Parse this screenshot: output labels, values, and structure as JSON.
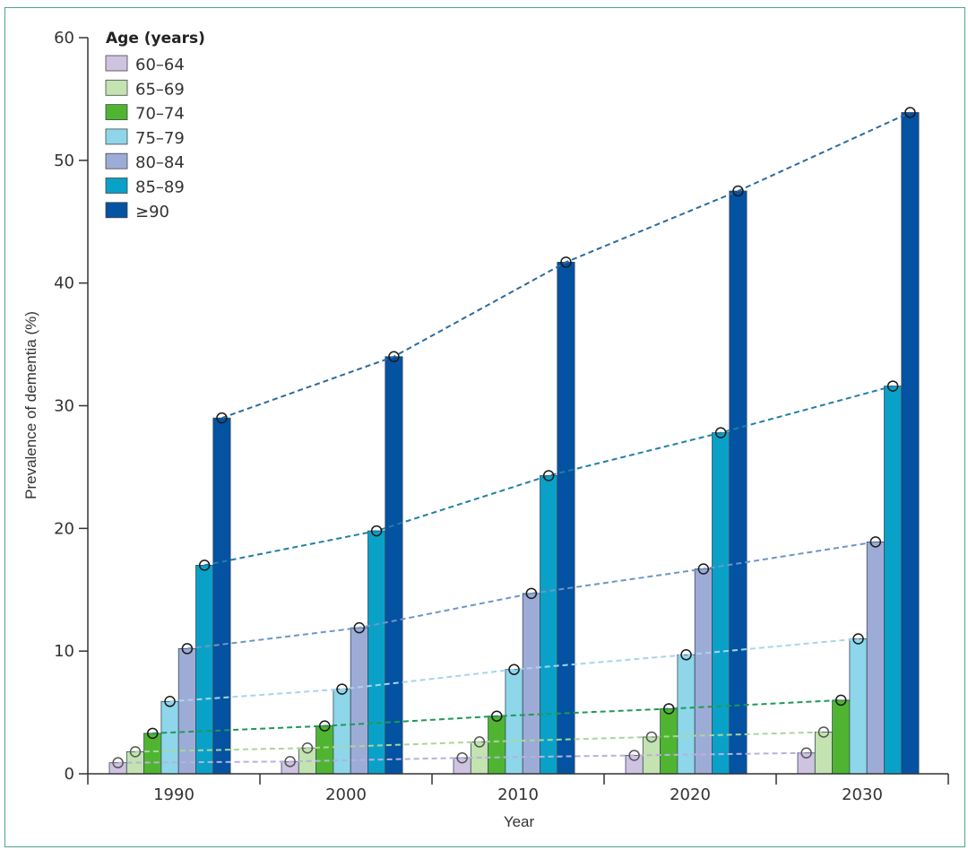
{
  "chart_data": {
    "type": "bar",
    "title": "",
    "xlabel": "Year",
    "ylabel": "Prevalence of dementia (%)",
    "ylim": [
      0,
      60
    ],
    "yticks": [
      0,
      10,
      20,
      30,
      40,
      50,
      60
    ],
    "categories": [
      "1990",
      "2000",
      "2010",
      "2020",
      "2030"
    ],
    "grid": false,
    "legend": {
      "title": "Age (years)",
      "placement": "top-left"
    },
    "trend_lines": "dashed lines connecting each age group's values across years, with circle markers at bar tops",
    "series": [
      {
        "name": "60–64",
        "color": "#cfc3e2",
        "line_color": "#b9b0dd",
        "values": [
          0.9,
          1.0,
          1.3,
          1.5,
          1.7
        ]
      },
      {
        "name": "65–69",
        "color": "#c3e3b1",
        "line_color": "#a9d79a",
        "values": [
          1.8,
          2.1,
          2.6,
          3.0,
          3.4
        ]
      },
      {
        "name": "70–74",
        "color": "#4fb531",
        "line_color": "#1f9a55",
        "values": [
          3.3,
          3.9,
          4.7,
          5.3,
          6.0
        ]
      },
      {
        "name": "75–79",
        "color": "#8ed6ea",
        "line_color": "#a9d4ec",
        "values": [
          5.9,
          6.9,
          8.5,
          9.7,
          11.0
        ]
      },
      {
        "name": "80–84",
        "color": "#9dacd6",
        "line_color": "#6f95c8",
        "values": [
          10.2,
          11.9,
          14.7,
          16.7,
          18.9
        ]
      },
      {
        "name": "85–89",
        "color": "#0aa1c9",
        "line_color": "#1f7fa8",
        "values": [
          17.0,
          19.8,
          24.3,
          27.8,
          31.6
        ]
      },
      {
        "name": "≥90",
        "color": "#0452a2",
        "line_color": "#2a6aa0",
        "values": [
          29.0,
          34.0,
          41.7,
          47.5,
          53.9
        ]
      }
    ]
  }
}
